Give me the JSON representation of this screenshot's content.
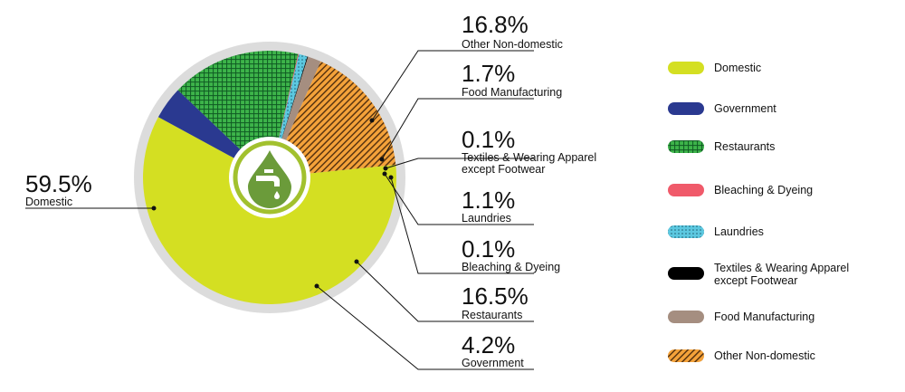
{
  "chart_data": {
    "type": "pie",
    "title": "",
    "slices": [
      {
        "name": "Domestic",
        "value": 59.5,
        "label_pct": "59.5%",
        "label_text": [
          "Domestic"
        ],
        "color": "#d4df22",
        "pattern": "solid"
      },
      {
        "name": "Government",
        "value": 4.2,
        "label_pct": "4.2%",
        "label_text": [
          "Government"
        ],
        "color": "#2a3990",
        "pattern": "solid"
      },
      {
        "name": "Restaurants",
        "value": 16.5,
        "label_pct": "16.5%",
        "label_text": [
          "Restaurants"
        ],
        "color": "#3db44a",
        "pattern": "grid"
      },
      {
        "name": "Bleaching & Dyeing",
        "value": 0.1,
        "label_pct": "0.1%",
        "label_text": [
          "Bleaching & Dyeing"
        ],
        "color": "#f05a6a",
        "pattern": "solid"
      },
      {
        "name": "Laundries",
        "value": 1.1,
        "label_pct": "1.1%",
        "label_text": [
          "Laundries"
        ],
        "color": "#5cc8e0",
        "pattern": "dots"
      },
      {
        "name": "Textiles & Wearing Apparel except Footwear",
        "value": 0.1,
        "label_pct": "0.1%",
        "label_text": [
          "Textiles & Wearing Apparel",
          "except Footwear"
        ],
        "color": "#000000",
        "pattern": "solid"
      },
      {
        "name": "Food Manufacturing",
        "value": 1.7,
        "label_pct": "1.7%",
        "label_text": [
          "Food Manufacturing"
        ],
        "color": "#a58e80",
        "pattern": "solid"
      },
      {
        "name": "Other Non-domestic",
        "value": 16.8,
        "label_pct": "16.8%",
        "label_text": [
          "Other Non-domestic"
        ],
        "color": "#f4a23a",
        "pattern": "stripes"
      }
    ],
    "legend": {
      "position": "right",
      "items": [
        {
          "text": [
            "Domestic"
          ],
          "slice": 0
        },
        {
          "text": [
            "Government"
          ],
          "slice": 1
        },
        {
          "text": [
            "Restaurants"
          ],
          "slice": 2
        },
        {
          "text": [
            "Bleaching & Dyeing"
          ],
          "slice": 3
        },
        {
          "text": [
            "Laundries"
          ],
          "slice": 4
        },
        {
          "text": [
            "Textiles & Wearing Apparel",
            "except Footwear"
          ],
          "slice": 5
        },
        {
          "text": [
            "Food Manufacturing"
          ],
          "slice": 6
        },
        {
          "text": [
            "Other Non-domestic"
          ],
          "slice": 7
        }
      ]
    },
    "center_icon": "water-tap-drop-icon",
    "ring_color": "#dcdcdc",
    "icon_colors": {
      "ring": "#a2c12e",
      "drop": "#6b9b3a"
    }
  }
}
